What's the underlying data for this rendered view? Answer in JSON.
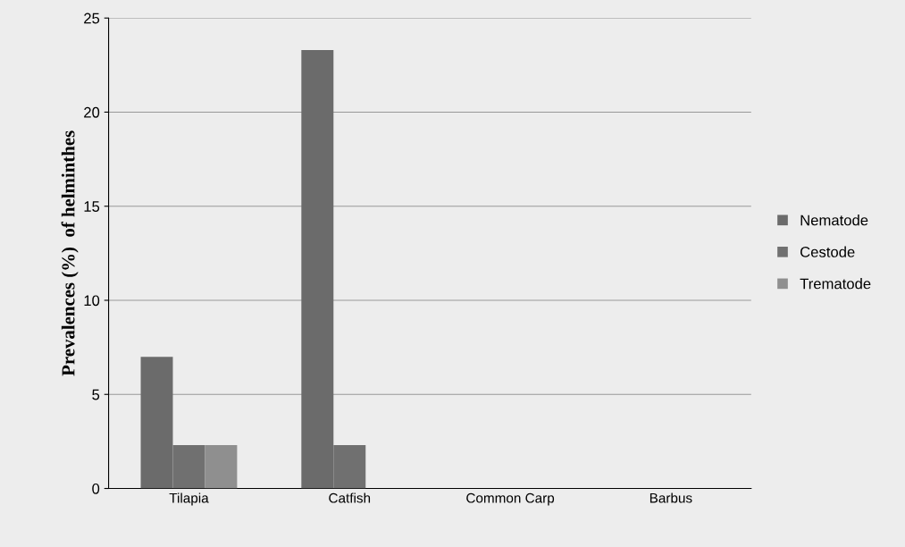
{
  "chart_data": {
    "type": "bar",
    "ylabel": "Prevalences (%)  of helminthes",
    "categories": [
      "Tilapia",
      "Catfish",
      "Common Carp",
      "Barbus"
    ],
    "series": [
      {
        "name": "Nematode",
        "color": "#6b6b6b",
        "values": [
          7,
          23.3,
          0,
          0
        ]
      },
      {
        "name": "Cestode",
        "color": "#707070",
        "values": [
          2.3,
          2.3,
          0,
          0
        ]
      },
      {
        "name": "Trematode",
        "color": "#8f8f8f",
        "values": [
          2.3,
          0,
          0,
          0
        ]
      }
    ],
    "ylim": [
      0,
      25
    ],
    "yticks": [
      0,
      5,
      10,
      15,
      20,
      25
    ],
    "grid": "y",
    "legend": "right"
  }
}
